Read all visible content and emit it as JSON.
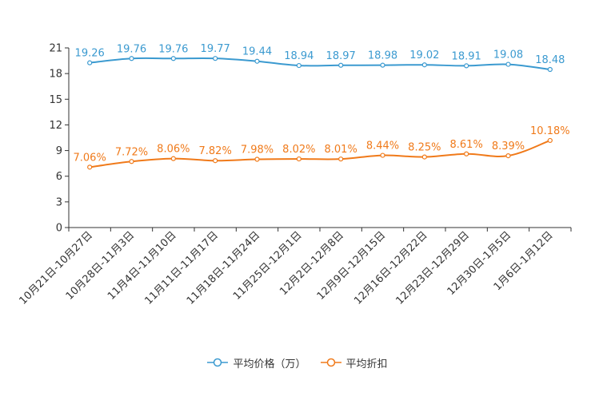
{
  "chart_data": {
    "type": "line",
    "title": "",
    "xlabel": "",
    "ylabel": "",
    "ylim": [
      0,
      21
    ],
    "yticks": [
      0,
      3,
      6,
      9,
      12,
      15,
      18,
      21
    ],
    "grid": false,
    "legend_position": "bottom",
    "categories": [
      "10月21日-10月27日",
      "10月28日-11月3日",
      "11月4日-11月10日",
      "11月11日-11月17日",
      "11月18日-11月24日",
      "11月25日-12月1日",
      "12月2日-12月8日",
      "12月9日-12月15日",
      "12月16日-12月22日",
      "12月23日-12月29日",
      "12月30日-1月5日",
      "1月6日-1月12日"
    ],
    "series": [
      {
        "name": "平均价格（万）",
        "color": "#3b9ad0",
        "values": [
          19.26,
          19.76,
          19.76,
          19.77,
          19.44,
          18.94,
          18.97,
          18.98,
          19.02,
          18.91,
          19.08,
          18.48
        ],
        "labels": [
          "19.26",
          "19.76",
          "19.76",
          "19.77",
          "19.44",
          "18.94",
          "18.97",
          "18.98",
          "19.02",
          "18.91",
          "19.08",
          "18.48"
        ]
      },
      {
        "name": "平均折扣",
        "color": "#f07a1a",
        "values": [
          7.06,
          7.72,
          8.06,
          7.82,
          7.98,
          8.02,
          8.01,
          8.44,
          8.25,
          8.61,
          8.39,
          10.18
        ],
        "labels": [
          "7.06%",
          "7.72%",
          "8.06%",
          "7.82%",
          "7.98%",
          "8.02%",
          "8.01%",
          "8.44%",
          "8.25%",
          "8.61%",
          "8.39%",
          "10.18%"
        ]
      }
    ]
  }
}
